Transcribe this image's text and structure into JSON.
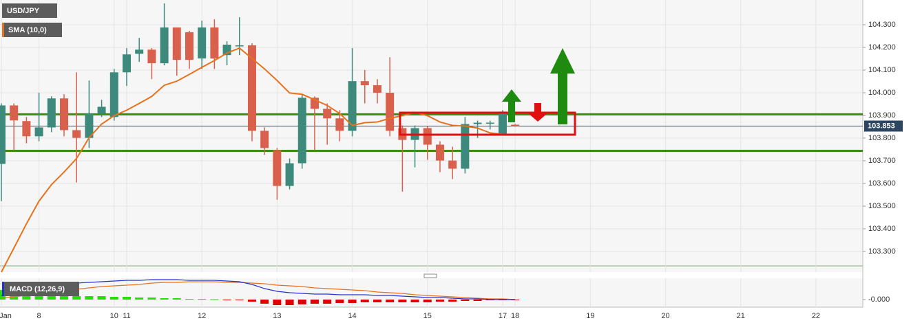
{
  "chart_data": [
    {
      "type": "candlestick",
      "title": "USD/JPY",
      "xlim": [
        -0.11,
        68.63
      ],
      "xticks": [
        {
          "value": 0,
          "label": "Jan"
        },
        {
          "value": 3,
          "label": "8"
        },
        {
          "value": 9,
          "label": "10"
        },
        {
          "value": 10,
          "label": "11"
        },
        {
          "value": 16,
          "label": "12"
        },
        {
          "value": 22,
          "label": "13"
        },
        {
          "value": 28,
          "label": "14"
        },
        {
          "value": 34,
          "label": "15"
        },
        {
          "value": 40,
          "label": "17"
        },
        {
          "value": 41,
          "label": "18"
        },
        {
          "value": 47,
          "label": "19"
        },
        {
          "value": 53,
          "label": "20"
        },
        {
          "value": 59,
          "label": "21"
        },
        {
          "value": 65,
          "label": "22"
        }
      ],
      "ylim": [
        103.209,
        104.409
      ],
      "yticks": [
        {
          "value": 104.3,
          "label": "104.300"
        },
        {
          "value": 104.2,
          "label": "104.200"
        },
        {
          "value": 104.1,
          "label": "104.100"
        },
        {
          "value": 104.0,
          "label": "104.000"
        },
        {
          "value": 103.9,
          "label": "103.900"
        },
        {
          "value": 103.8,
          "label": "103.800"
        },
        {
          "value": 103.7,
          "label": "103.700"
        },
        {
          "value": 103.6,
          "label": "103.600"
        },
        {
          "value": 103.5,
          "label": "103.500"
        },
        {
          "value": 103.4,
          "label": "103.400"
        },
        {
          "value": 103.3,
          "label": "103.300"
        }
      ],
      "grid": true,
      "up_color": "#3d8a7c",
      "down_color": "#d9604c",
      "open": [
        103.686,
        103.944,
        103.875,
        103.808,
        103.847,
        103.975,
        103.835,
        103.801,
        103.908,
        103.893,
        104.09,
        104.172,
        104.19,
        104.13,
        104.288,
        104.267,
        104.151,
        104.288,
        104.166,
        104.209,
        104.209,
        103.832,
        103.747,
        103.589,
        103.689,
        103.978,
        103.929,
        103.887,
        103.832,
        104.051,
        104.033,
        104.0,
        103.844,
        103.792,
        103.844,
        103.771,
        103.701,
        103.665,
        103.862,
        103.868,
        103.817,
        103.859
      ],
      "high": [
        103.953,
        103.953,
        103.893,
        104.0,
        103.984,
        103.993,
        104.09,
        104.054,
        103.969,
        104.105,
        104.197,
        104.242,
        104.197,
        104.394,
        104.288,
        104.273,
        104.318,
        104.324,
        104.227,
        104.333,
        104.218,
        103.847,
        103.756,
        103.71,
        103.99,
        103.984,
        103.953,
        103.923,
        104.197,
        104.1,
        104.06,
        104.157,
        103.856,
        103.856,
        103.853,
        103.786,
        103.762,
        103.893,
        103.877,
        103.877,
        103.923,
        103.862
      ],
      "low": [
        103.522,
        103.747,
        103.777,
        103.786,
        103.826,
        103.808,
        103.604,
        103.756,
        103.893,
        103.877,
        104.03,
        104.136,
        104.06,
        104.121,
        104.075,
        104.105,
        104.105,
        104.105,
        104.121,
        104.166,
        103.786,
        103.726,
        103.528,
        103.574,
        103.665,
        103.747,
        103.771,
        103.786,
        103.808,
        103.953,
        103.953,
        103.808,
        103.564,
        103.671,
        103.704,
        103.65,
        103.619,
        103.644,
        103.801,
        103.838,
        103.817,
        103.85
      ],
      "close": [
        103.944,
        103.878,
        103.808,
        103.847,
        103.975,
        103.835,
        103.801,
        103.908,
        103.938,
        104.09,
        104.169,
        104.19,
        104.13,
        104.288,
        104.145,
        104.145,
        104.288,
        104.151,
        104.212,
        104.209,
        103.832,
        103.756,
        103.589,
        103.689,
        103.978,
        103.929,
        103.887,
        103.832,
        104.051,
        104.033,
        104.0,
        103.832,
        103.792,
        103.844,
        103.771,
        103.701,
        103.665,
        103.862,
        103.868,
        103.868,
        103.917,
        103.853
      ],
      "overlays": [
        {
          "name": "SMA (10,0)",
          "color": "#e8711c",
          "values": [
            103.209,
            103.315,
            103.422,
            103.522,
            103.595,
            103.65,
            103.71,
            103.802,
            103.862,
            103.899,
            103.923,
            103.953,
            103.984,
            104.033,
            104.051,
            104.081,
            104.112,
            104.142,
            104.175,
            104.197,
            104.151,
            104.105,
            104.054,
            103.999,
            103.993,
            103.969,
            103.944,
            103.908,
            103.856,
            103.868,
            103.871,
            103.887,
            103.899,
            103.914,
            103.899,
            103.871,
            103.856,
            103.853,
            103.844,
            103.823,
            103.817,
            null
          ]
        }
      ],
      "levels": [
        103.905,
        103.744
      ],
      "level_color": "#3c8a10",
      "last_price": 103.853
    },
    {
      "type": "macd",
      "title": "MACD (12,26,9)",
      "ylim": [
        -0.0275,
        0.0775
      ],
      "yticks": [
        {
          "value": 0,
          "label": "-0.000"
        }
      ],
      "macd_line": {
        "color": "#2233cc",
        "values": [
          0.015,
          0.0275,
          0.04,
          0.05,
          0.055,
          0.0575,
          0.06,
          0.0625,
          0.065,
          0.0675,
          0.07,
          0.07,
          0.0725,
          0.0725,
          0.0725,
          0.07,
          0.07,
          0.07,
          0.0675,
          0.065,
          0.055,
          0.04,
          0.03,
          0.025,
          0.0225,
          0.02,
          0.02,
          0.0175,
          0.0175,
          0.0175,
          0.015,
          0.015,
          0.0125,
          0.01,
          0.0075,
          0.0075,
          0.005,
          0.0025,
          0.0025,
          0,
          0,
          0
        ]
      },
      "signal_line": {
        "color": "#e8711c",
        "values": [
          0.005,
          0.01,
          0.015,
          0.02,
          0.025,
          0.0325,
          0.0375,
          0.0425,
          0.0475,
          0.05,
          0.0525,
          0.055,
          0.06,
          0.0625,
          0.0625,
          0.065,
          0.065,
          0.065,
          0.0625,
          0.0625,
          0.06,
          0.0575,
          0.0525,
          0.05,
          0.0475,
          0.0425,
          0.04,
          0.0375,
          0.035,
          0.0325,
          0.0275,
          0.025,
          0.0225,
          0.0175,
          0.015,
          0.0125,
          0.01,
          0.0075,
          0.005,
          0.0025,
          0.0025,
          0
        ]
      },
      "histogram": {
        "up_color": "#22e000",
        "down_color": "#e00000",
        "values": [
          0.035,
          0.0175,
          0.0175,
          0.015,
          0.015,
          0.015,
          0.0125,
          0.0125,
          0.0125,
          0.01,
          0.01,
          0.0075,
          0.0075,
          0.005,
          0.005,
          0.0025,
          0.0025,
          0.00125,
          -0.00125,
          -0.0025,
          -0.0075,
          -0.015,
          -0.02,
          -0.02,
          -0.0175,
          -0.015,
          -0.015,
          -0.0125,
          -0.0125,
          -0.01,
          -0.01,
          -0.01,
          -0.01,
          -0.01,
          -0.01,
          -0.0075,
          -0.0075,
          -0.005,
          -0.005,
          -0.0025,
          -0.0025,
          -0.00125
        ]
      }
    }
  ]
}
